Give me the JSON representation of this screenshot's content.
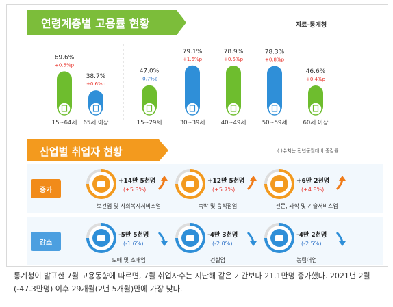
{
  "colors": {
    "header_green": "#7cbd3a",
    "header_orange": "#f39a1e",
    "bar_green": "#6ebd2e",
    "bar_blue": "#2f8fd8",
    "label_red": "#e8352d",
    "label_blue": "#2a6fc6",
    "inc_badge": "#f18b1a",
    "dec_badge": "#4c9fe0",
    "ring_orange": "#f39a1e",
    "ring_blue": "#2f8fd8",
    "arrow_orange": "#f07c1a",
    "arrow_blue": "#2f8fd8",
    "section_bg": "#eef5fc"
  },
  "header1": {
    "title": "연령계층별 고용률 현황",
    "source": "자료-통계청"
  },
  "header2": {
    "title": "산업별 취업자 현황",
    "note": "( )수치는 전년동월대비 증감률"
  },
  "chart_data": {
    "type": "bar",
    "title": "연령계층별 고용률 현황",
    "unit": "%",
    "categories": [
      "15~64세",
      "65세 이상",
      "15~29세",
      "30~39세",
      "40~49세",
      "50~59세",
      "60세 이상"
    ],
    "values": [
      69.6,
      38.7,
      47.0,
      79.1,
      78.9,
      78.3,
      46.6
    ],
    "value_labels": [
      "69.6%",
      "38.7%",
      "47.0%",
      "79.1%",
      "78.9%",
      "78.3%",
      "46.6%"
    ],
    "change_labels": [
      "+0.5%p",
      "+0.6%p",
      "-0.7%p",
      "+1.6%p",
      "+0.5%p",
      "+0.8%p",
      "+0.4%p"
    ],
    "bar_colors": [
      "green",
      "blue",
      "green",
      "blue",
      "green",
      "blue",
      "green"
    ],
    "ylim": [
      0,
      100
    ]
  },
  "industry": {
    "increase_label": "증가",
    "decrease_label": "감소",
    "increase": [
      {
        "amount": "+14만 5천명",
        "rate": "(+5.3%)",
        "name": "보건업 및 사회복지서비스업",
        "icon": "medical-kit-icon"
      },
      {
        "amount": "+12만 5천명",
        "rate": "(+5.7%)",
        "name": "숙박 및 음식점업",
        "icon": "dining-icon"
      },
      {
        "amount": "+6만 2천명",
        "rate": "(+4.8%)",
        "name": "전문, 과학 및 기술서비스업",
        "icon": "lab-flask-icon"
      }
    ],
    "decrease": [
      {
        "amount": "-5만 5천명",
        "rate": "(-1.6%)",
        "name": "도매 및 소매업",
        "icon": "shopping-basket-icon"
      },
      {
        "amount": "-4만 3천명",
        "rate": "(-2.0%)",
        "name": "건설업",
        "icon": "excavator-icon"
      },
      {
        "amount": "-4만 2천명",
        "rate": "(-2.5%)",
        "name": "농림어업",
        "icon": "wheat-icon"
      }
    ]
  },
  "caption": "통계청이 발표한 7월 고용동향에 따르면, 7월 취업자수는 지난해 같은 기간보다 21.1만명 증가했다. 2021년 2월(-47.3만명) 이후 29개월(2년 5개월)만에 가장 낮다."
}
